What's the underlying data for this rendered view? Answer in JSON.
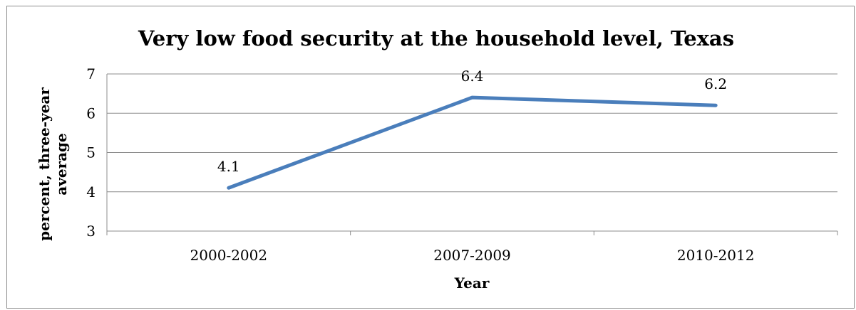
{
  "chart_data": {
    "type": "line",
    "title": "Very low food security at the household level, Texas",
    "xlabel": "Year",
    "ylabel_lines": [
      "percent, three-year",
      "average"
    ],
    "categories": [
      "2000-2002",
      "2007-2009",
      "2010-2012"
    ],
    "series": [
      {
        "values": [
          4.1,
          6.4,
          6.2
        ],
        "data_labels": [
          "4.1",
          "6.4",
          "6.2"
        ],
        "color": "#4a7ebb"
      }
    ],
    "ylim": [
      3,
      7
    ],
    "yticks": [
      3,
      4,
      5,
      6,
      7
    ],
    "ytick_labels": [
      "3",
      "4",
      "5",
      "6",
      "7"
    ],
    "grid": true,
    "legend": "none"
  }
}
